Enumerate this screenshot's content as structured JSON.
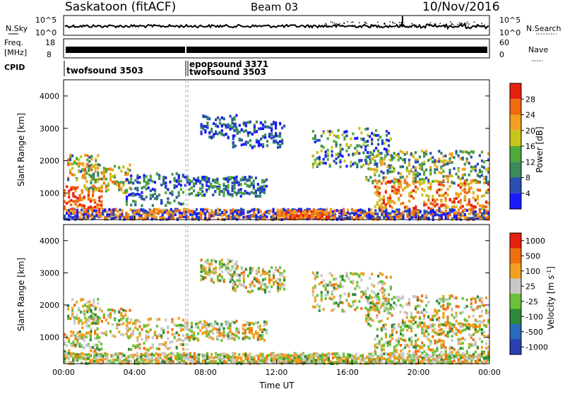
{
  "header": {
    "station": "Saskatoon (fitACF)",
    "beam": "Beam 03",
    "date": "10/Nov/2016"
  },
  "panel_labels": {
    "nsky": "N.Sky",
    "nsearch": "N.Search",
    "freq": "Freq.",
    "freq_unit": "[MHz]",
    "nave": "Nave",
    "cpid": "CPID",
    "power_label": "Power [dB]",
    "velocity_label": "Velocity [m s",
    "velocity_sup": "-1",
    "velocity_close": "]"
  },
  "cpid_blocks": [
    {
      "name": "twofsound 3503"
    },
    {
      "name": "epopsound 3371"
    },
    {
      "name": "twofsound 3503"
    }
  ],
  "colors": {
    "power_scale": [
      "#1a1aff",
      "#2a4fb0",
      "#3a8a5a",
      "#4faa3a",
      "#c8c41c",
      "#f0a020",
      "#f06a10",
      "#e82010"
    ],
    "velocity_scale": [
      "#2a3fb0",
      "#2a6ab8",
      "#2e8a3a",
      "#6cc23a",
      "#c8c8c8",
      "#f0a020",
      "#f07010",
      "#e82010"
    ]
  },
  "chart_data": [
    {
      "type": "line",
      "title": "",
      "ylabel_left": "N.Sky",
      "ylabel_right": "N.Search",
      "y_ticks_left": [
        "10^5",
        "10^0"
      ],
      "y_ticks_right": [
        "10^5",
        "10^0"
      ]
    },
    {
      "type": "bar",
      "ylabel_left": "Freq. [MHz]",
      "ylabel_right": "Nave",
      "y_ticks_left": [
        "18",
        "8"
      ],
      "y_ticks_right": [
        "60",
        "0"
      ]
    },
    {
      "type": "heatmap",
      "variable": "Power",
      "ylabel": "Slant Range [km]",
      "y_ticks": [
        "1000",
        "2000",
        "3000",
        "4000"
      ],
      "ylim": [
        180,
        4500
      ],
      "colorbar_label": "Power [dB]",
      "colorbar_ticks": [
        "4",
        "8",
        "12",
        "16",
        "20",
        "24",
        "28"
      ]
    },
    {
      "type": "heatmap",
      "variable": "Velocity",
      "ylabel": "Slant Range [km]",
      "y_ticks": [
        "1000",
        "2000",
        "3000",
        "4000"
      ],
      "ylim": [
        180,
        4500
      ],
      "xlabel": "Time UT",
      "x_ticks": [
        "00:00",
        "04:00",
        "08:00",
        "12:00",
        "16:00",
        "20:00",
        "00:00"
      ],
      "colorbar_label": "Velocity [m s-1]",
      "colorbar_ticks": [
        "1000",
        "500",
        "100",
        "25",
        "-25",
        "-100",
        "-500",
        "-1000"
      ]
    }
  ]
}
